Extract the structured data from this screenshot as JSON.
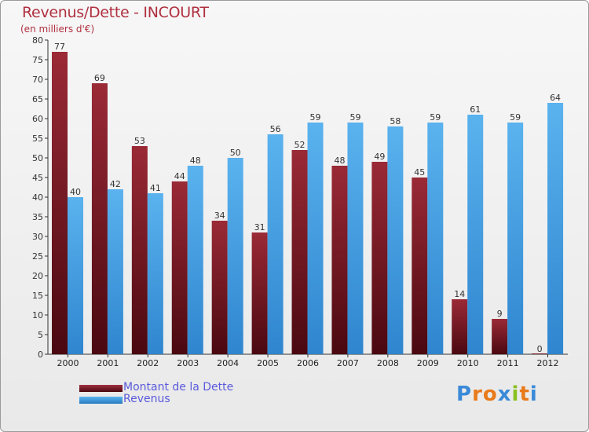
{
  "colors": {
    "dette": "#7a1a24",
    "revenus": "#3a9ae0",
    "title": "#b03040",
    "legend_text": "#5a5adc"
  },
  "chart_data": {
    "type": "bar",
    "title": "Revenus/Dette - INCOURT",
    "subtitle": "(en milliers d'€)",
    "categories": [
      "2000",
      "2001",
      "2002",
      "2003",
      "2004",
      "2005",
      "2006",
      "2007",
      "2008",
      "2009",
      "2010",
      "2011",
      "2012"
    ],
    "series": [
      {
        "name": "Montant de la Dette",
        "values": [
          77,
          69,
          53,
          44,
          34,
          31,
          52,
          48,
          49,
          45,
          14,
          9,
          0
        ]
      },
      {
        "name": "Revenus",
        "values": [
          40,
          42,
          41,
          48,
          50,
          56,
          59,
          59,
          58,
          59,
          61,
          59,
          64
        ]
      }
    ],
    "ylim": [
      0,
      80
    ],
    "yticks": [
      0,
      5,
      10,
      15,
      20,
      25,
      30,
      35,
      40,
      45,
      50,
      55,
      60,
      65,
      70,
      75,
      80
    ],
    "xlabel": "",
    "ylabel": "",
    "legend": "bottom-left",
    "grid": false
  },
  "logo": {
    "letters": [
      "P",
      "r",
      "o",
      "x",
      "i",
      "t",
      "i"
    ],
    "colors": [
      "#3a8ad8",
      "#e87a1a",
      "#e87a1a",
      "#3a8ad8",
      "#8ac020",
      "#e87a1a",
      "#3a8ad8"
    ]
  }
}
